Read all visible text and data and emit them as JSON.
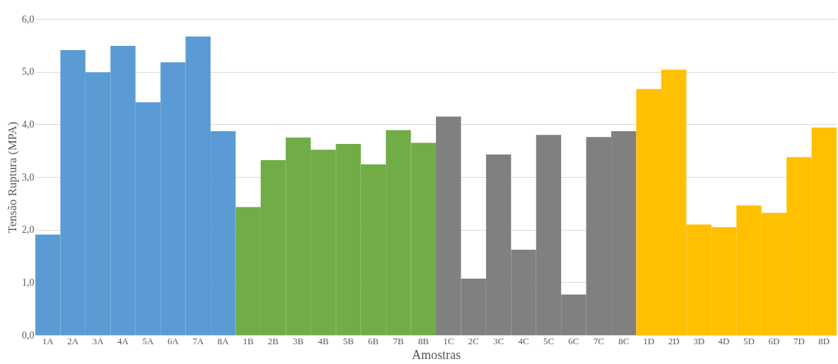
{
  "chart_data": {
    "type": "bar",
    "xlabel": "Amostras",
    "ylabel": "Tensão Ruptura (MPA)",
    "categories": [
      "1A",
      "2A",
      "3A",
      "4A",
      "5A",
      "6A",
      "7A",
      "8A",
      "1B",
      "2B",
      "3B",
      "4B",
      "5B",
      "6B",
      "7B",
      "8B",
      "1C",
      "2C",
      "3C",
      "4C",
      "5C",
      "6C",
      "7C",
      "8C",
      "1D",
      "2D",
      "3D",
      "4D",
      "5D",
      "6D",
      "7D",
      "8D"
    ],
    "values": [
      1.91,
      5.41,
      4.99,
      5.49,
      4.42,
      5.18,
      5.67,
      3.87,
      2.43,
      3.32,
      3.75,
      3.52,
      3.63,
      3.24,
      3.89,
      3.65,
      4.15,
      1.07,
      3.43,
      1.62,
      3.8,
      0.77,
      3.76,
      3.87,
      4.67,
      5.04,
      2.1,
      2.05,
      2.46,
      2.32,
      3.38,
      3.94
    ],
    "colors": [
      "#5b9bd5",
      "#5b9bd5",
      "#5b9bd5",
      "#5b9bd5",
      "#5b9bd5",
      "#5b9bd5",
      "#5b9bd5",
      "#5b9bd5",
      "#70ad47",
      "#70ad47",
      "#70ad47",
      "#70ad47",
      "#70ad47",
      "#70ad47",
      "#70ad47",
      "#70ad47",
      "#808080",
      "#808080",
      "#808080",
      "#808080",
      "#808080",
      "#808080",
      "#808080",
      "#808080",
      "#ffc000",
      "#ffc000",
      "#ffc000",
      "#ffc000",
      "#ffc000",
      "#ffc000",
      "#ffc000",
      "#ffc000"
    ],
    "ylim": [
      0,
      6
    ],
    "yticks": [
      {
        "value": 0,
        "label": "0,0"
      },
      {
        "value": 1,
        "label": "1,0"
      },
      {
        "value": 2,
        "label": "2,0"
      },
      {
        "value": 3,
        "label": "3,0"
      },
      {
        "value": 4,
        "label": "4,0"
      },
      {
        "value": 5,
        "label": "5,0"
      },
      {
        "value": 6,
        "label": "6,0"
      }
    ],
    "grid": "y"
  }
}
